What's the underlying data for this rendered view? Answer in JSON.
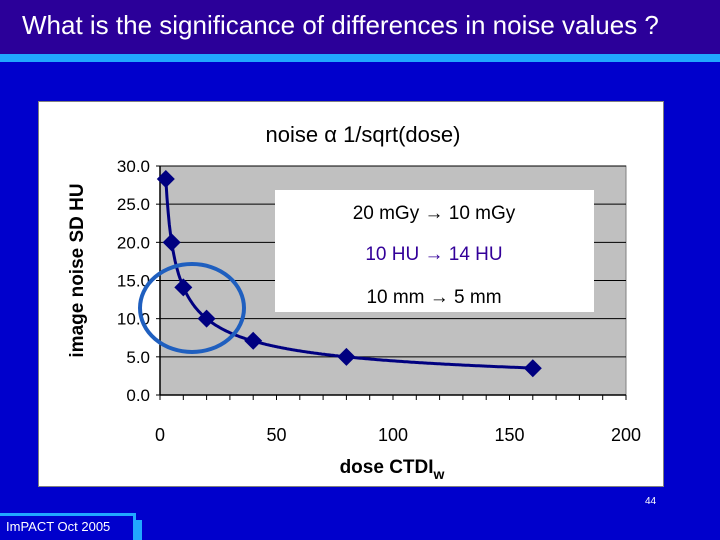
{
  "slide": {
    "title": "What is the significance of differences in noise values ?",
    "page_number": "44",
    "footer": "ImPACT Oct 2005"
  },
  "colors": {
    "background": "#0000cc",
    "title_bar": "#2b0099",
    "accent_stripe": "#21a7ff",
    "plot_area": "#c0c0c0",
    "series_marker": "#000080",
    "circle": "#1f5fbf",
    "annotation_purple": "#330099"
  },
  "chart_data": {
    "type": "line",
    "title": "noise α 1/sqrt(dose)",
    "xlabel_main": "dose CTDI",
    "xlabel_sub": "w",
    "ylabel": "image noise SD   HU",
    "xlim": [
      0,
      200
    ],
    "ylim": [
      0,
      30
    ],
    "x_ticks": [
      "0",
      "50",
      "100",
      "150",
      "200"
    ],
    "y_ticks": [
      "0.0",
      "5.0",
      "10.0",
      "15.0",
      "20.0",
      "25.0",
      "30.0"
    ],
    "grid": true,
    "legend": "none",
    "markers": {
      "x": [
        2.5,
        5,
        10,
        20,
        40,
        80,
        160
      ],
      "y": [
        28.3,
        20.0,
        14.1,
        10.0,
        7.1,
        5.0,
        3.5
      ]
    },
    "annotations": [
      {
        "text": "20 mGy → 10 mGy",
        "color": "#000000"
      },
      {
        "text": "10 HU → 14 HU",
        "color": "#330099"
      },
      {
        "text": "10 mm → 5 mm",
        "color": "#000000"
      }
    ]
  }
}
